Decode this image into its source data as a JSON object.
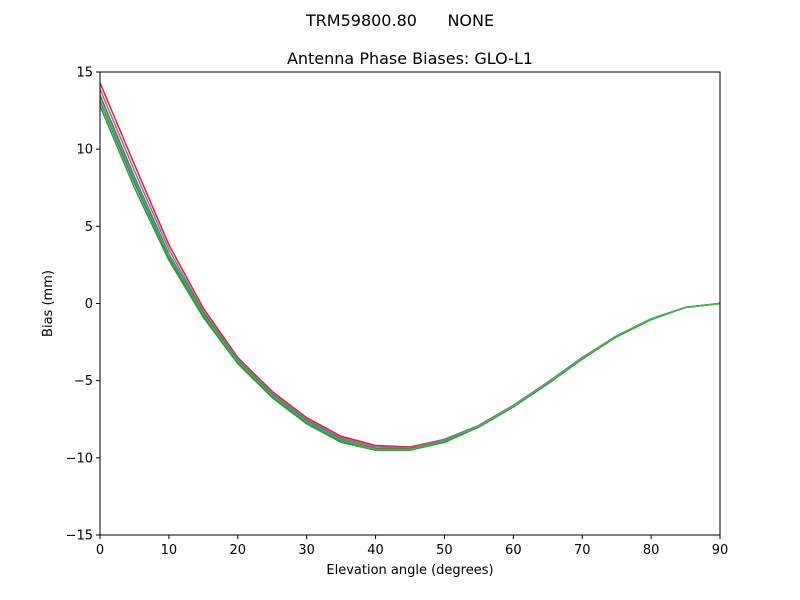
{
  "chart_data": {
    "type": "line",
    "suptitle": "TRM59800.80      NONE",
    "title": "Antenna Phase Biases: GLO-L1",
    "xlabel": "Elevation angle (degrees)",
    "ylabel": "Bias (mm)",
    "xlim": [
      0,
      90
    ],
    "ylim": [
      -15,
      15
    ],
    "xticks": [
      0,
      10,
      20,
      30,
      40,
      50,
      60,
      70,
      80,
      90
    ],
    "yticks": [
      -15,
      -10,
      -5,
      0,
      5,
      10,
      15
    ],
    "ytick_labels": [
      "−15",
      "−10",
      "−5",
      "0",
      "5",
      "10",
      "15"
    ],
    "grid": false,
    "x": [
      0,
      5,
      10,
      15,
      20,
      25,
      30,
      35,
      40,
      45,
      50,
      55,
      60,
      65,
      70,
      75,
      80,
      85,
      90
    ],
    "series": [
      {
        "color": "#d62728",
        "values": [
          14.3,
          9.0,
          3.8,
          -0.3,
          -3.5,
          -5.7,
          -7.4,
          -8.6,
          -9.2,
          -9.3,
          -8.8,
          -7.9,
          -6.6,
          -5.1,
          -3.5,
          -2.1,
          -1.0,
          -0.25,
          0.0
        ]
      },
      {
        "color": "#9467bd",
        "values": [
          13.9,
          8.6,
          3.5,
          -0.5,
          -3.6,
          -5.8,
          -7.5,
          -8.7,
          -9.3,
          -9.35,
          -8.8,
          -7.9,
          -6.6,
          -5.1,
          -3.5,
          -2.1,
          -1.0,
          -0.25,
          0.0
        ]
      },
      {
        "color": "#8c564b",
        "values": [
          13.5,
          8.2,
          3.2,
          -0.6,
          -3.7,
          -5.9,
          -7.6,
          -8.8,
          -9.4,
          -9.4,
          -8.9,
          -8.0,
          -6.7,
          -5.2,
          -3.6,
          -2.1,
          -1.0,
          -0.25,
          0.0
        ]
      },
      {
        "color": "#1f77b4",
        "values": [
          13.1,
          7.8,
          3.0,
          -0.8,
          -3.8,
          -6.0,
          -7.7,
          -8.9,
          -9.5,
          -9.5,
          -8.95,
          -8.0,
          -6.7,
          -5.2,
          -3.6,
          -2.15,
          -1.0,
          -0.25,
          0.0
        ]
      },
      {
        "color": "#2ca02c",
        "values": [
          12.8,
          7.5,
          2.8,
          -0.9,
          -3.9,
          -6.1,
          -7.8,
          -9.0,
          -9.5,
          -9.5,
          -9.0,
          -8.0,
          -6.7,
          -5.2,
          -3.6,
          -2.15,
          -1.05,
          -0.25,
          0.0
        ]
      },
      {
        "color": "#4caf50",
        "values": [
          13.2,
          8.0,
          3.1,
          -0.7,
          -3.75,
          -5.95,
          -7.65,
          -8.85,
          -9.45,
          -9.45,
          -8.9,
          -7.95,
          -6.65,
          -5.15,
          -3.55,
          -2.1,
          -1.0,
          -0.25,
          0.0
        ]
      }
    ]
  }
}
